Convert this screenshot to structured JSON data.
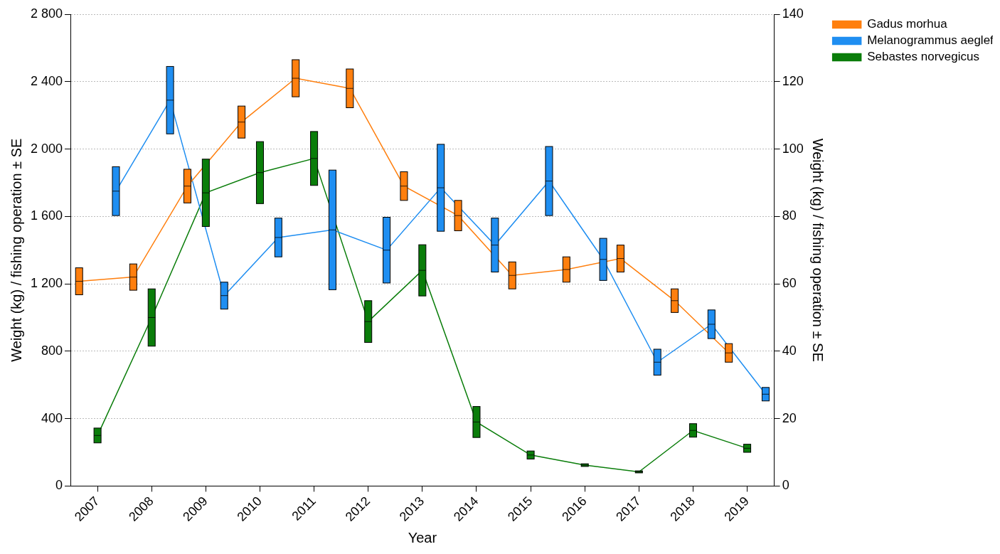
{
  "chart_data": {
    "type": "line",
    "x_label": "Year",
    "y_label": "Weight (kg) / fishing operation ± SE",
    "y2_label": "Weight (kg) / fishing operation ± SE",
    "categories": [
      "2007",
      "2008",
      "2009",
      "2010",
      "2011",
      "2012",
      "2013",
      "2014",
      "2015",
      "2016",
      "2017",
      "2018",
      "2019"
    ],
    "ylim": [
      0,
      2800
    ],
    "yticks": [
      0,
      400,
      800,
      {
        "value": 1200,
        "label": "1 200"
      },
      {
        "value": 1600,
        "label": "1 600"
      },
      {
        "value": 2000,
        "label": "2 000"
      },
      {
        "value": 2400,
        "label": "2 400"
      },
      {
        "value": 2800,
        "label": "2 800"
      }
    ],
    "y2lim": [
      0,
      140
    ],
    "y2ticks": [
      0,
      20,
      40,
      60,
      80,
      100,
      120,
      140
    ],
    "grid": true,
    "legend": "top-right",
    "series": [
      {
        "name": "Gadus morhua",
        "color": "#ff7f0e",
        "axis": "y",
        "values": [
          1215,
          1240,
          1780,
          2160,
          2420,
          2360,
          1780,
          1605,
          1250,
          1285,
          1350,
          1100,
          790
        ],
        "se": [
          80,
          78,
          100,
          95,
          110,
          115,
          85,
          90,
          80,
          75,
          80,
          70,
          55
        ]
      },
      {
        "name": "Melanogrammus aeglefinus",
        "color": "#1f8ef1",
        "axis": "y",
        "values": [
          1750,
          2290,
          1130,
          1475,
          1520,
          1400,
          1770,
          1430,
          1810,
          1345,
          735,
          960,
          545
        ],
        "se": [
          145,
          200,
          80,
          115,
          355,
          195,
          258,
          160,
          205,
          125,
          77,
          85,
          40
        ]
      },
      {
        "name": "Sebastes norvegicus",
        "color": "#0a7d0a",
        "axis": "y2",
        "values": [
          15,
          50,
          87,
          93,
          97.2,
          48.8,
          64,
          19,
          9.2,
          6.2,
          4.2,
          16.5,
          11.2
        ],
        "se": [
          2.2,
          8.5,
          10,
          9.2,
          8,
          6.2,
          7.6,
          4.6,
          1.2,
          0.4,
          0.3,
          2,
          1.2
        ]
      }
    ]
  }
}
